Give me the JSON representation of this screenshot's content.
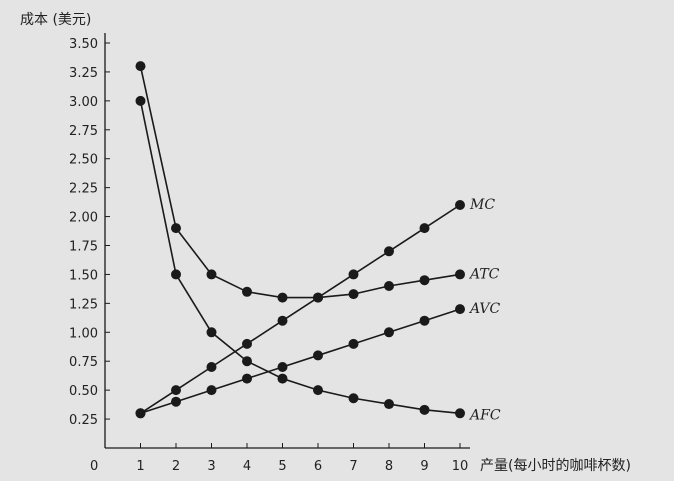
{
  "chart_data": {
    "type": "line",
    "ylabel": "成本 (美元)",
    "xlabel": "产量(每小时的咖啡杯数)",
    "origin_label": "0",
    "xlim": [
      0,
      10
    ],
    "ylim": [
      0,
      3.5
    ],
    "x_ticks": [
      "1",
      "2",
      "3",
      "4",
      "5",
      "6",
      "7",
      "8",
      "9",
      "10"
    ],
    "y_ticks": [
      "0.25",
      "0.50",
      "0.75",
      "1.00",
      "1.25",
      "1.50",
      "1.75",
      "2.00",
      "2.25",
      "2.50",
      "2.75",
      "3.00",
      "3.25",
      "3.50"
    ],
    "x": [
      1,
      2,
      3,
      4,
      5,
      6,
      7,
      8,
      9,
      10
    ],
    "series": [
      {
        "name": "MC",
        "values": [
          0.3,
          0.5,
          0.7,
          0.9,
          1.1,
          1.3,
          1.5,
          1.7,
          1.9,
          2.1
        ]
      },
      {
        "name": "ATC",
        "values": [
          3.3,
          1.9,
          1.5,
          1.35,
          1.3,
          1.3,
          1.33,
          1.4,
          1.45,
          1.5
        ]
      },
      {
        "name": "AVC",
        "values": [
          0.3,
          0.4,
          0.5,
          0.6,
          0.7,
          0.8,
          0.9,
          1.0,
          1.1,
          1.2
        ]
      },
      {
        "name": "AFC",
        "values": [
          3.0,
          1.5,
          1.0,
          0.75,
          0.6,
          0.5,
          0.43,
          0.38,
          0.33,
          0.3
        ]
      }
    ],
    "colors": {
      "line": "#1a1a1a",
      "background": "#e4e4e4"
    }
  }
}
